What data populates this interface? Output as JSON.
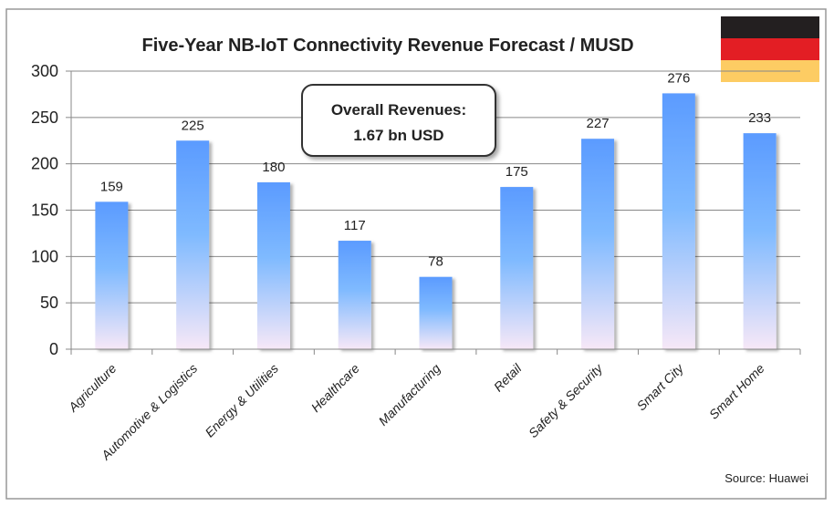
{
  "chart_data": {
    "type": "bar",
    "title": "Five-Year NB-IoT Connectivity Revenue Forecast / MUSD",
    "categories": [
      "Agriculture",
      "Automotive & Logistics",
      "Energy & Utilities",
      "Healthcare",
      "Manufacturing",
      "Retail",
      "Safety & Security",
      "Smart City",
      "Smart Home"
    ],
    "values": [
      159,
      225,
      180,
      117,
      78,
      175,
      227,
      276,
      233
    ],
    "xlabel": "",
    "ylabel": "",
    "ylim": [
      0,
      300
    ],
    "yticks": [
      0,
      50,
      100,
      150,
      200,
      250,
      300
    ],
    "grid": true,
    "legend": "none",
    "bar_gradient": [
      "#5b9bff",
      "#7fbaff",
      "#f7e8f7"
    ],
    "annotation": {
      "line1": "Overall Revenues:",
      "line2": "1.67 bn USD"
    },
    "source": "Source: Huawei",
    "flag": {
      "name": "germany-flag",
      "colors": [
        "#231f20",
        "#e31e24",
        "#fdcc63"
      ]
    }
  }
}
